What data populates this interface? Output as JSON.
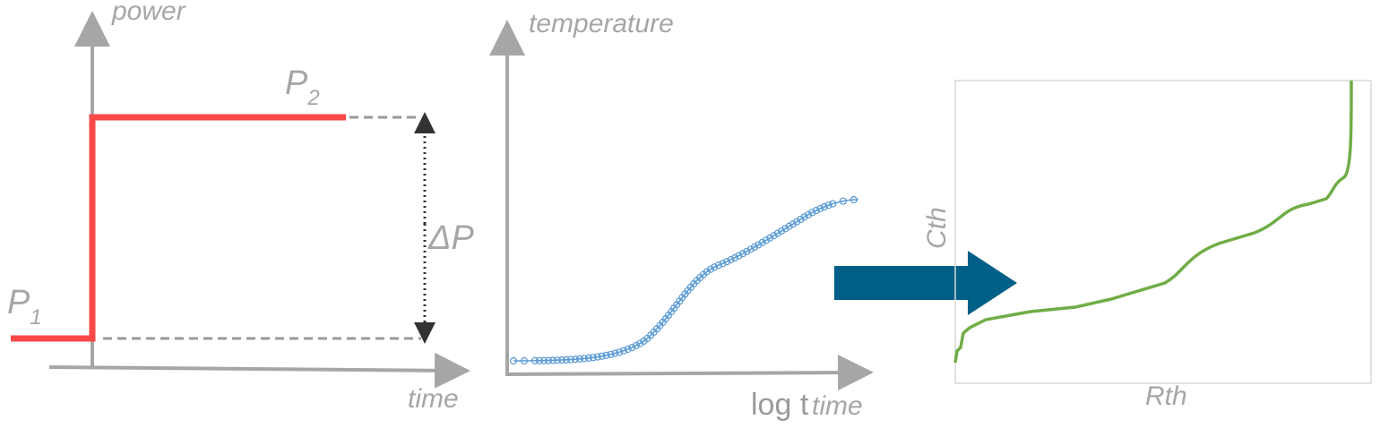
{
  "power_panel": {
    "y_label": "power",
    "x_label": "time",
    "p1": {
      "text": "P",
      "sub": "1"
    },
    "p2": {
      "text": "P",
      "sub": "2"
    },
    "delta": "ΔP"
  },
  "temperature_panel": {
    "y_label": "temperature",
    "x_label_prefix": "log t",
    "x_label": "time"
  },
  "structure_panel": {
    "y_label": "Cth",
    "x_label": "Rth"
  }
}
